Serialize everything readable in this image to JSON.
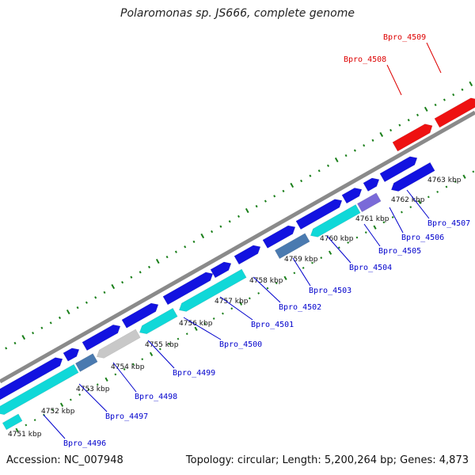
{
  "title": "Polaromonas sp. JS666, complete genome",
  "accession": "Accession: NC_007948",
  "summary": "Topology: circular; Length: 5,200,264 bp; Genes: 4,873",
  "colors": {
    "backbone": "#8a8a8a",
    "ticks": "#1a7f1a",
    "label_normal": "#0000cc",
    "label_highlight": "#dd0000",
    "gene_blue": "#1212e0",
    "gene_cyan": "#10d8d8",
    "gene_steel": "#4a7ab0",
    "gene_gray": "#c8c8c8",
    "gene_purple": "#7a6ad8",
    "gene_red": "#ee1111"
  },
  "kbp_ticks": [
    {
      "label": "4751 kbp"
    },
    {
      "label": "4752 kbp"
    },
    {
      "label": "4753 kbp"
    },
    {
      "label": "4754 kbp"
    },
    {
      "label": "4755 kbp"
    },
    {
      "label": "4756 kbp"
    },
    {
      "label": "4757 kbp"
    },
    {
      "label": "4758 kbp"
    },
    {
      "label": "4759 kbp"
    },
    {
      "label": "4760 kbp"
    },
    {
      "label": "4761 kbp"
    },
    {
      "label": "4762 kbp"
    },
    {
      "label": "4763 kbp"
    }
  ],
  "gene_labels": [
    {
      "text": "Bpro_4496",
      "highlight": false
    },
    {
      "text": "Bpro_4497",
      "highlight": false
    },
    {
      "text": "Bpro_4498",
      "highlight": false
    },
    {
      "text": "Bpro_4499",
      "highlight": false
    },
    {
      "text": "Bpro_4500",
      "highlight": false
    },
    {
      "text": "Bpro_4501",
      "highlight": false
    },
    {
      "text": "Bpro_4502",
      "highlight": false
    },
    {
      "text": "Bpro_4503",
      "highlight": false
    },
    {
      "text": "Bpro_4504",
      "highlight": false
    },
    {
      "text": "Bpro_4505",
      "highlight": false
    },
    {
      "text": "Bpro_4506",
      "highlight": false
    },
    {
      "text": "Bpro_4507",
      "highlight": false
    },
    {
      "text": "Bpro_4508",
      "highlight": true
    },
    {
      "text": "Bpro_4509",
      "highlight": true
    }
  ]
}
